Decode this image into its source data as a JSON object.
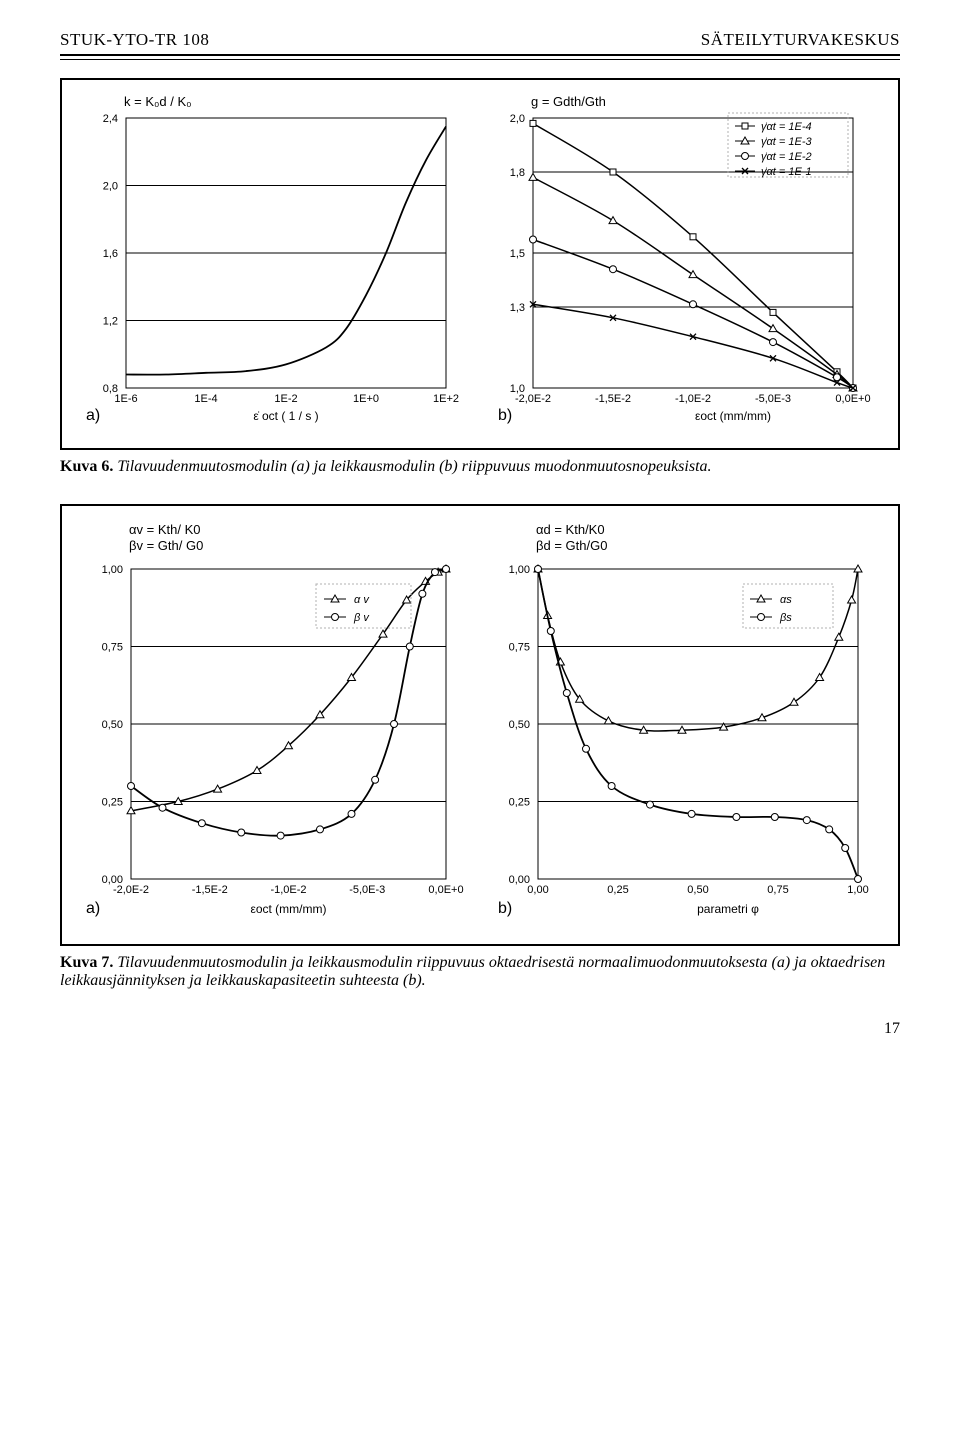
{
  "header": {
    "left": "STUK-YTO-TR 108",
    "right": "SÄTEILYTURVAKESKUS"
  },
  "pagenum": "17",
  "fig6": {
    "caption_bold": "Kuva 6.",
    "caption_rest": " Tilavuudenmuutosmodulin (a) ja leikkausmodulin (b) riippuvuus muodonmuutosnopeuksista.",
    "panelA": {
      "title": "k = K₀d / K₀",
      "xlabel": "ε̇ oct ( 1 / s )",
      "letter": "a)",
      "xlim": [
        -6,
        2
      ],
      "ylim": [
        0.8,
        2.4
      ],
      "xticks": [
        {
          "v": -6,
          "label": "1E-6"
        },
        {
          "v": -4,
          "label": "1E-4"
        },
        {
          "v": -2,
          "label": "1E-2"
        },
        {
          "v": 0,
          "label": "1E+0"
        },
        {
          "v": 2,
          "label": "1E+2"
        }
      ],
      "yticks": [
        {
          "v": 0.8,
          "label": "0,8"
        },
        {
          "v": 1.2,
          "label": "1,2"
        },
        {
          "v": 1.6,
          "label": "1,6"
        },
        {
          "v": 2.0,
          "label": "2,0"
        },
        {
          "v": 2.4,
          "label": "2,4"
        }
      ],
      "curve": [
        [
          -6,
          0.88
        ],
        [
          -5,
          0.88
        ],
        [
          -4,
          0.89
        ],
        [
          -3,
          0.9
        ],
        [
          -2,
          0.94
        ],
        [
          -1,
          1.04
        ],
        [
          -0.5,
          1.15
        ],
        [
          0,
          1.35
        ],
        [
          0.5,
          1.6
        ],
        [
          1,
          1.9
        ],
        [
          1.5,
          2.15
        ],
        [
          2,
          2.35
        ]
      ]
    },
    "panelB": {
      "title": "g = Gdth/Gth",
      "xlabel": "εoct (mm/mm)",
      "letter": "b)",
      "xlim": [
        -0.02,
        0.0
      ],
      "ylim": [
        1.0,
        2.0
      ],
      "xticks": [
        {
          "v": -0.02,
          "label": "-2,0E-2"
        },
        {
          "v": -0.015,
          "label": "-1,5E-2"
        },
        {
          "v": -0.01,
          "label": "-1,0E-2"
        },
        {
          "v": -0.005,
          "label": "-5,0E-3"
        },
        {
          "v": 0,
          "label": "0,0E+0"
        }
      ],
      "yticks": [
        {
          "v": 1.0,
          "label": "1,0"
        },
        {
          "v": 1.3,
          "label": "1,3"
        },
        {
          "v": 1.5,
          "label": "1,5"
        },
        {
          "v": 1.8,
          "label": "1,8"
        },
        {
          "v": 2.0,
          "label": "2,0"
        }
      ],
      "legend": [
        {
          "sym": "square",
          "label": "γ̇αt = 1E-4"
        },
        {
          "sym": "triangle",
          "label": "γ̇αt = 1E-3"
        },
        {
          "sym": "circle",
          "label": "γ̇αt = 1E-2"
        },
        {
          "sym": "x",
          "label": "γ̇αt = 1E-1"
        }
      ],
      "series": [
        {
          "name": "1E-4",
          "marker": "square",
          "pts": [
            [
              -0.02,
              1.98
            ],
            [
              -0.015,
              1.8
            ],
            [
              -0.01,
              1.56
            ],
            [
              -0.005,
              1.28
            ],
            [
              -0.001,
              1.06
            ],
            [
              0,
              1.0
            ]
          ]
        },
        {
          "name": "1E-3",
          "marker": "triangle",
          "pts": [
            [
              -0.02,
              1.78
            ],
            [
              -0.015,
              1.62
            ],
            [
              -0.01,
              1.42
            ],
            [
              -0.005,
              1.22
            ],
            [
              -0.001,
              1.05
            ],
            [
              0,
              1.0
            ]
          ]
        },
        {
          "name": "1E-2",
          "marker": "circle",
          "pts": [
            [
              -0.02,
              1.55
            ],
            [
              -0.015,
              1.44
            ],
            [
              -0.01,
              1.31
            ],
            [
              -0.005,
              1.17
            ],
            [
              -0.001,
              1.04
            ],
            [
              0,
              1.0
            ]
          ]
        },
        {
          "name": "1E-1",
          "marker": "x",
          "pts": [
            [
              -0.02,
              1.31
            ],
            [
              -0.015,
              1.26
            ],
            [
              -0.01,
              1.19
            ],
            [
              -0.005,
              1.11
            ],
            [
              -0.001,
              1.02
            ],
            [
              0,
              1.0
            ]
          ]
        }
      ]
    }
  },
  "fig7": {
    "caption_bold": "Kuva 7.",
    "caption_rest": " Tilavuudenmuutosmodulin ja leikkausmodulin riippuvuus oktaedrisestä normaalimuodonmuutoksesta (a) ja oktaedrisen leikkausjännityksen ja leikkauskapasiteetin suhteesta (b).",
    "panelA": {
      "title_line1": "αv = Kth/ K0",
      "title_line2": "βv = Gth/ G0",
      "xlabel": "εoct (mm/mm)",
      "letter": "a)",
      "xlim": [
        -0.02,
        0.0
      ],
      "ylim": [
        0.0,
        1.0
      ],
      "xticks": [
        {
          "v": -0.02,
          "label": "-2,0E-2"
        },
        {
          "v": -0.015,
          "label": "-1,5E-2"
        },
        {
          "v": -0.01,
          "label": "-1,0E-2"
        },
        {
          "v": -0.005,
          "label": "-5,0E-3"
        },
        {
          "v": 0,
          "label": "0,0E+0"
        }
      ],
      "yticks": [
        {
          "v": 0,
          "label": "0,00"
        },
        {
          "v": 0.25,
          "label": "0,25"
        },
        {
          "v": 0.5,
          "label": "0,50"
        },
        {
          "v": 0.75,
          "label": "0,75"
        },
        {
          "v": 1.0,
          "label": "1,00"
        }
      ],
      "legend": [
        {
          "sym": "triangle",
          "label": "α v"
        },
        {
          "sym": "circle",
          "label": "β v"
        }
      ],
      "alpha": [
        [
          -0.02,
          0.22
        ],
        [
          -0.017,
          0.25
        ],
        [
          -0.0145,
          0.29
        ],
        [
          -0.012,
          0.35
        ],
        [
          -0.01,
          0.43
        ],
        [
          -0.008,
          0.53
        ],
        [
          -0.006,
          0.65
        ],
        [
          -0.004,
          0.79
        ],
        [
          -0.0025,
          0.9
        ],
        [
          -0.0013,
          0.96
        ],
        [
          -0.0005,
          0.99
        ],
        [
          0,
          1.0
        ]
      ],
      "beta": [
        [
          -0.02,
          0.3
        ],
        [
          -0.018,
          0.23
        ],
        [
          -0.0155,
          0.18
        ],
        [
          -0.013,
          0.15
        ],
        [
          -0.0105,
          0.14
        ],
        [
          -0.008,
          0.16
        ],
        [
          -0.006,
          0.21
        ],
        [
          -0.0045,
          0.32
        ],
        [
          -0.0033,
          0.5
        ],
        [
          -0.0023,
          0.75
        ],
        [
          -0.0015,
          0.92
        ],
        [
          -0.0007,
          0.99
        ],
        [
          0,
          1.0
        ]
      ]
    },
    "panelB": {
      "title_line1": "αd = Kth/K0",
      "title_line2": "βd = Gth/G0",
      "xlabel": "parametri φ",
      "letter": "b)",
      "xlim": [
        0.0,
        1.0
      ],
      "ylim": [
        0.0,
        1.0
      ],
      "xticks": [
        {
          "v": 0,
          "label": "0,00"
        },
        {
          "v": 0.25,
          "label": "0,25"
        },
        {
          "v": 0.5,
          "label": "0,50"
        },
        {
          "v": 0.75,
          "label": "0,75"
        },
        {
          "v": 1.0,
          "label": "1,00"
        }
      ],
      "yticks": [
        {
          "v": 0,
          "label": "0,00"
        },
        {
          "v": 0.25,
          "label": "0,25"
        },
        {
          "v": 0.5,
          "label": "0,50"
        },
        {
          "v": 0.75,
          "label": "0,75"
        },
        {
          "v": 1.0,
          "label": "1,00"
        }
      ],
      "legend": [
        {
          "sym": "triangle",
          "label": "αs"
        },
        {
          "sym": "circle",
          "label": "βs"
        }
      ],
      "alpha": [
        [
          0,
          1.0
        ],
        [
          0.03,
          0.85
        ],
        [
          0.07,
          0.7
        ],
        [
          0.13,
          0.58
        ],
        [
          0.22,
          0.51
        ],
        [
          0.33,
          0.48
        ],
        [
          0.45,
          0.48
        ],
        [
          0.58,
          0.49
        ],
        [
          0.7,
          0.52
        ],
        [
          0.8,
          0.57
        ],
        [
          0.88,
          0.65
        ],
        [
          0.94,
          0.78
        ],
        [
          0.98,
          0.9
        ],
        [
          1.0,
          1.0
        ]
      ],
      "beta": [
        [
          0,
          1.0
        ],
        [
          0.04,
          0.8
        ],
        [
          0.09,
          0.6
        ],
        [
          0.15,
          0.42
        ],
        [
          0.23,
          0.3
        ],
        [
          0.35,
          0.24
        ],
        [
          0.48,
          0.21
        ],
        [
          0.62,
          0.2
        ],
        [
          0.74,
          0.2
        ],
        [
          0.84,
          0.19
        ],
        [
          0.91,
          0.16
        ],
        [
          0.96,
          0.1
        ],
        [
          1.0,
          0.0
        ]
      ]
    }
  }
}
